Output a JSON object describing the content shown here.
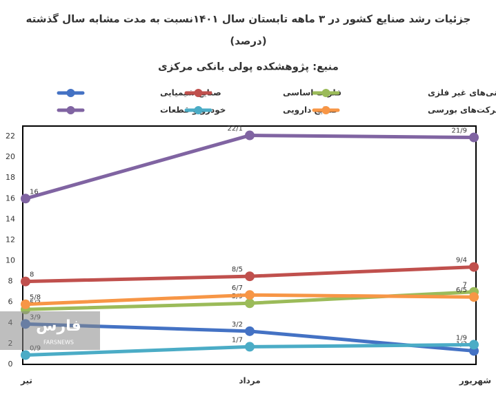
{
  "chart_data": {
    "type": "line",
    "title": "جزئیات رشد صنایع کشور در ۳ ماهه تابستان سال ۱۴۰۱نسبت به مدت مشابه سال گذشته",
    "title_line2": "(درصد)",
    "subtitle": "منبع: پژوهشکده پولی بانکی مرکزی",
    "watermark": "فارس",
    "watermark_sub": "FARSNEWS",
    "categories": [
      "تیر",
      "مرداد",
      "شهریور"
    ],
    "ylim": [
      0,
      23
    ],
    "yticks": [
      0,
      2,
      4,
      6,
      8,
      10,
      12,
      14,
      16,
      18,
      20,
      22
    ],
    "grid": false,
    "series": [
      {
        "name": "صنایع شیمیایی",
        "color": "#4472c4",
        "values": [
          3.9,
          3.2,
          1.3
        ],
        "value_labels": [
          "3/9",
          "3/2",
          "1/3"
        ]
      },
      {
        "name": "فلزات اساسی",
        "color": "#c0504d",
        "values": [
          8,
          8.5,
          9.4
        ],
        "value_labels": [
          "8",
          "8/5",
          "9/4"
        ]
      },
      {
        "name": "کانی‌های غیر فلزی",
        "color": "#9bbb59",
        "values": [
          5.3,
          5.9,
          7
        ],
        "value_labels": [
          "5/3",
          "5/9",
          "7"
        ]
      },
      {
        "name": "خودرو و قطعات",
        "color": "#8064a2",
        "values": [
          16,
          22.1,
          21.9
        ],
        "value_labels": [
          "16",
          "22/1",
          "21/9"
        ]
      },
      {
        "name": "صنایع دارویی",
        "color": "#4bacc6",
        "values": [
          0.9,
          1.7,
          1.9
        ],
        "value_labels": [
          "0/9",
          "1/7",
          "1/9"
        ]
      },
      {
        "name": "شاخص کل شرکت‌های بورسی",
        "color": "#f79646",
        "values": [
          5.8,
          6.7,
          6.5
        ],
        "value_labels": [
          "5/8",
          "6/7",
          "6/5"
        ]
      }
    ]
  }
}
